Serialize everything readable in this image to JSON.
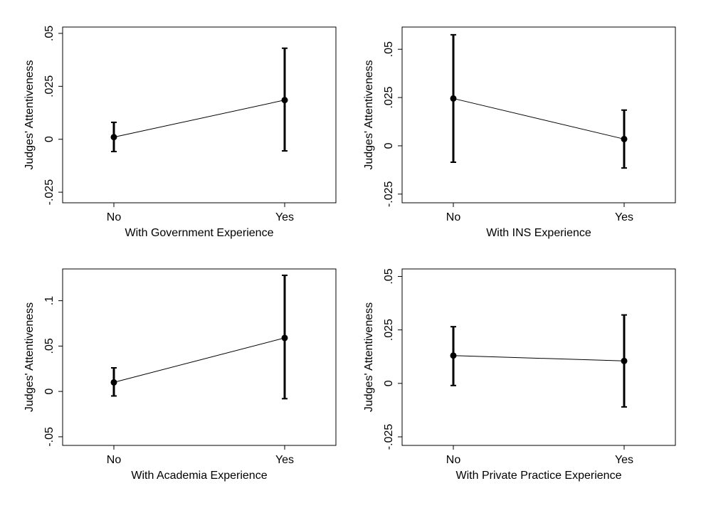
{
  "chart_data": [
    {
      "type": "line",
      "categories": [
        "No",
        "Yes"
      ],
      "values": [
        0.001,
        0.0185
      ],
      "lower": [
        -0.0058,
        -0.0055
      ],
      "upper": [
        0.008,
        0.043
      ],
      "xlabel": "With Government Experience",
      "ylabel": "Judges' Attentiveness",
      "ylim": [
        -0.03,
        0.053
      ],
      "yticks": [
        -0.025,
        0,
        0.025,
        0.05
      ],
      "ytick_labels": [
        "-.025",
        "0",
        ".025",
        ".05"
      ]
    },
    {
      "type": "line",
      "categories": [
        "No",
        "Yes"
      ],
      "values": [
        0.0245,
        0.0035
      ],
      "lower": [
        -0.0085,
        -0.0115
      ],
      "upper": [
        0.0575,
        0.0185
      ],
      "xlabel": "With INS Experience",
      "ylabel": "Judges' Attentiveness",
      "ylim": [
        -0.0295,
        0.0615
      ],
      "yticks": [
        -0.025,
        0,
        0.025,
        0.05
      ],
      "ytick_labels": [
        "-.025",
        "0",
        ".025",
        ".05"
      ]
    },
    {
      "type": "line",
      "categories": [
        "No",
        "Yes"
      ],
      "values": [
        0.01,
        0.059
      ],
      "lower": [
        -0.005,
        -0.008
      ],
      "upper": [
        0.026,
        0.128
      ],
      "xlabel": "With Academia Experience",
      "ylabel": "Judges' Attentiveness",
      "ylim": [
        -0.0595,
        0.135
      ],
      "yticks": [
        -0.05,
        0,
        0.05,
        0.1
      ],
      "ytick_labels": [
        "-.05",
        "0",
        ".05",
        ".1"
      ]
    },
    {
      "type": "line",
      "categories": [
        "No",
        "Yes"
      ],
      "values": [
        0.013,
        0.0105
      ],
      "lower": [
        -0.001,
        -0.011
      ],
      "upper": [
        0.0265,
        0.032
      ],
      "xlabel": "With Private Practice Experience",
      "ylabel": "Judges' Attentiveness",
      "ylim": [
        -0.029,
        0.0535
      ],
      "yticks": [
        -0.025,
        0,
        0.025,
        0.05
      ],
      "ytick_labels": [
        "-.025",
        "0",
        ".025",
        ".05"
      ]
    }
  ]
}
